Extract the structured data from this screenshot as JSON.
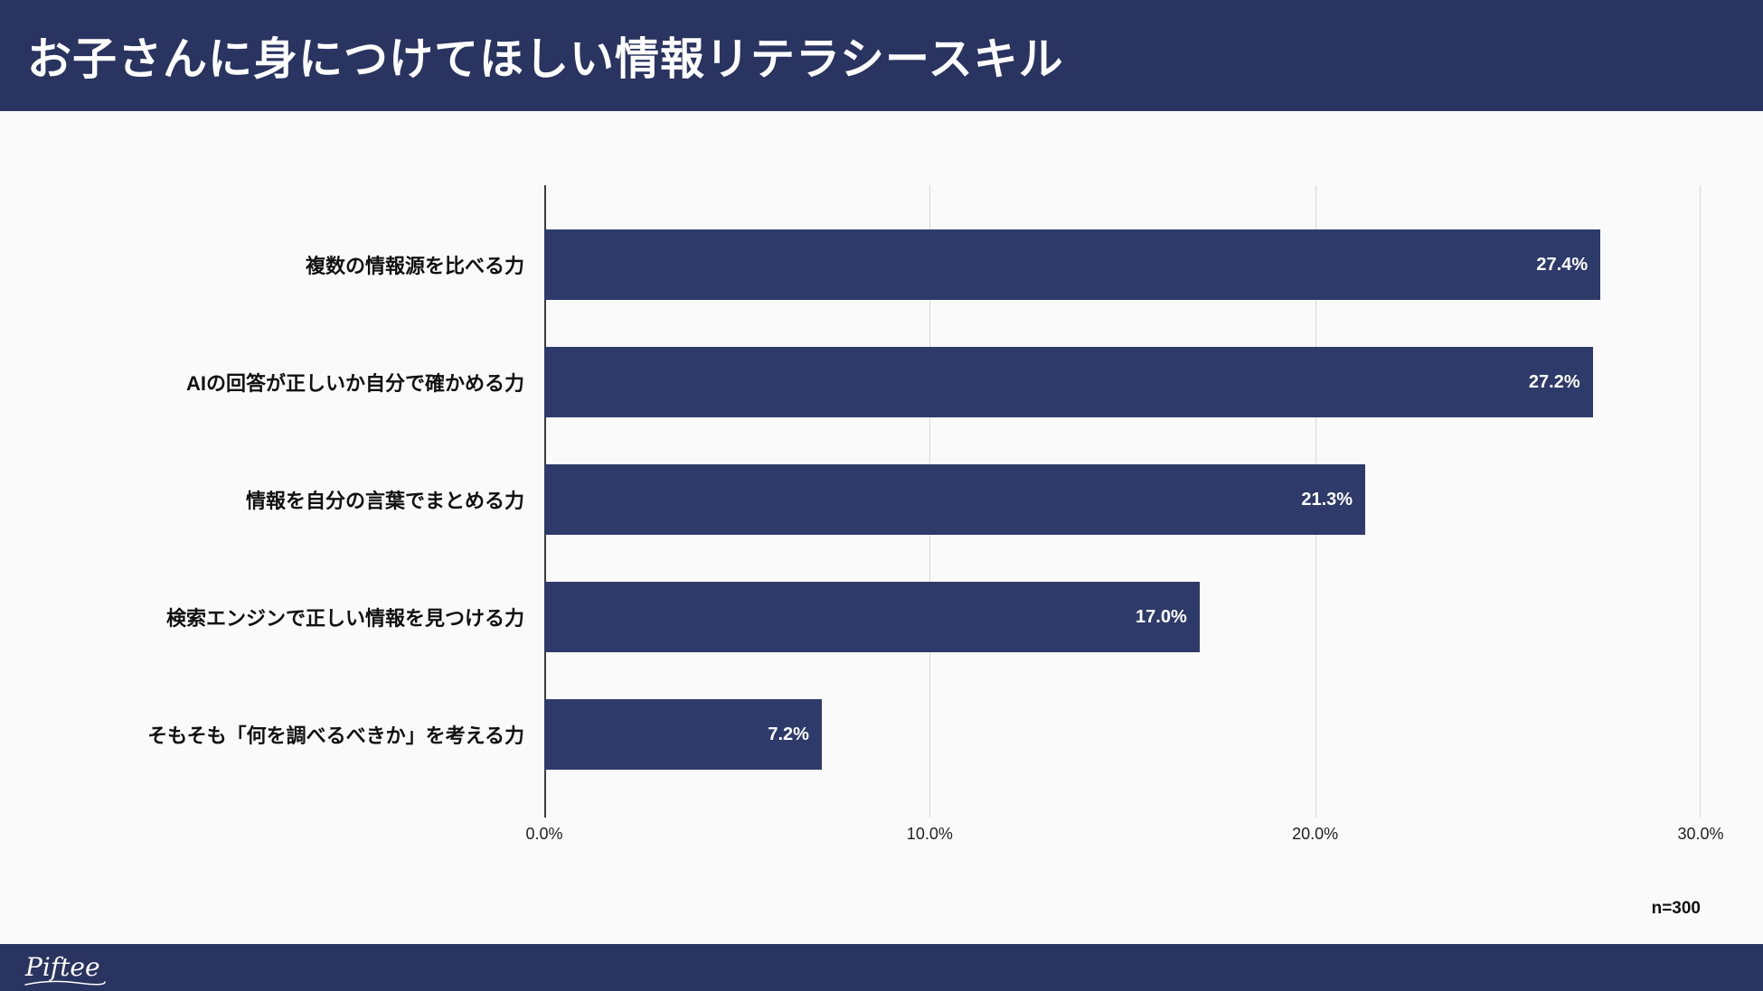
{
  "header": {
    "title": "お子さんに身につけてほしい情報リテラシースキル"
  },
  "chart_data": {
    "type": "bar",
    "orientation": "horizontal",
    "title": "お子さんに身につけてほしい情報リテラシースキル",
    "categories": [
      "複数の情報源を比べる力",
      "AIの回答が正しいか自分で確かめる力",
      "情報を自分の言葉でまとめる力",
      "検索エンジンで正しい情報を見つける力",
      "そもそも「何を調べるべきか」を考える力"
    ],
    "values": [
      27.4,
      27.2,
      21.3,
      17.0,
      7.2
    ],
    "value_labels": [
      "27.4%",
      "27.2%",
      "21.3%",
      "17.0%",
      "7.2%"
    ],
    "x_ticks": [
      "0.0%",
      "10.0%",
      "20.0%",
      "30.0%"
    ],
    "xlim": [
      0,
      30
    ],
    "grid": true,
    "legend": "none",
    "bar_color": "#2e3a69"
  },
  "footnote": {
    "sample_size": "n=300"
  },
  "footer": {
    "logo_text": "Piftee"
  },
  "colors": {
    "navy": "#293460",
    "bar": "#2e3a69"
  }
}
